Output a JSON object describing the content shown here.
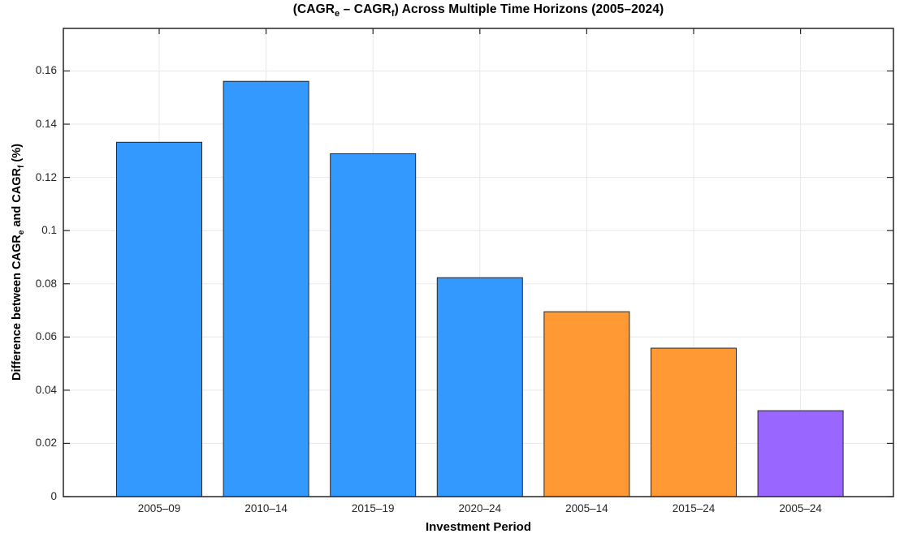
{
  "chart_data": {
    "type": "bar",
    "title_plain": "(CAGR_e – CAGR_f) Across Multiple Time Horizons (2005–2024)",
    "title_segments": [
      {
        "t": "(CAGR",
        "sub": false
      },
      {
        "t": "e",
        "sub": true
      },
      {
        "t": " – CAGR",
        "sub": false
      },
      {
        "t": "f",
        "sub": true
      },
      {
        "t": ") Across Multiple Time Horizons (2005–2024)",
        "sub": false
      }
    ],
    "xlabel": "Investment Period",
    "ylabel_plain": "Difference between CAGR_e and CAGR_f (%)",
    "ylabel_segments": [
      {
        "t": "Difference between CAGR",
        "sub": false
      },
      {
        "t": "e",
        "sub": true
      },
      {
        "t": " and CAGR",
        "sub": false
      },
      {
        "t": "f",
        "sub": true
      },
      {
        "t": " (%)",
        "sub": false
      }
    ],
    "categories": [
      "2005–09",
      "2010–14",
      "2015–19",
      "2020–24",
      "2005–14",
      "2015–24",
      "2005–24"
    ],
    "values": [
      0.1332,
      0.1561,
      0.1289,
      0.0823,
      0.0695,
      0.0558,
      0.0323
    ],
    "bar_colors": [
      "#3399FF",
      "#3399FF",
      "#3399FF",
      "#3399FF",
      "#FF9933",
      "#FF9933",
      "#9966FF"
    ],
    "yticks": [
      0,
      0.02,
      0.04,
      0.06,
      0.08,
      0.1,
      0.12,
      0.14,
      0.16
    ],
    "ytick_labels": [
      "0",
      "0.02",
      "0.04",
      "0.06",
      "0.08",
      "0.1",
      "0.12",
      "0.14",
      "0.16"
    ],
    "ylim": [
      0,
      0.176
    ],
    "grid": true,
    "legend": null,
    "colors": {
      "background": "#FFFFFF",
      "bar_edge": "#262626",
      "axis_frame": "#262626",
      "gridline": "#E8E8E8",
      "tick_mark": "#262626",
      "tick_text": "#262626",
      "label_text": "#000000"
    }
  }
}
